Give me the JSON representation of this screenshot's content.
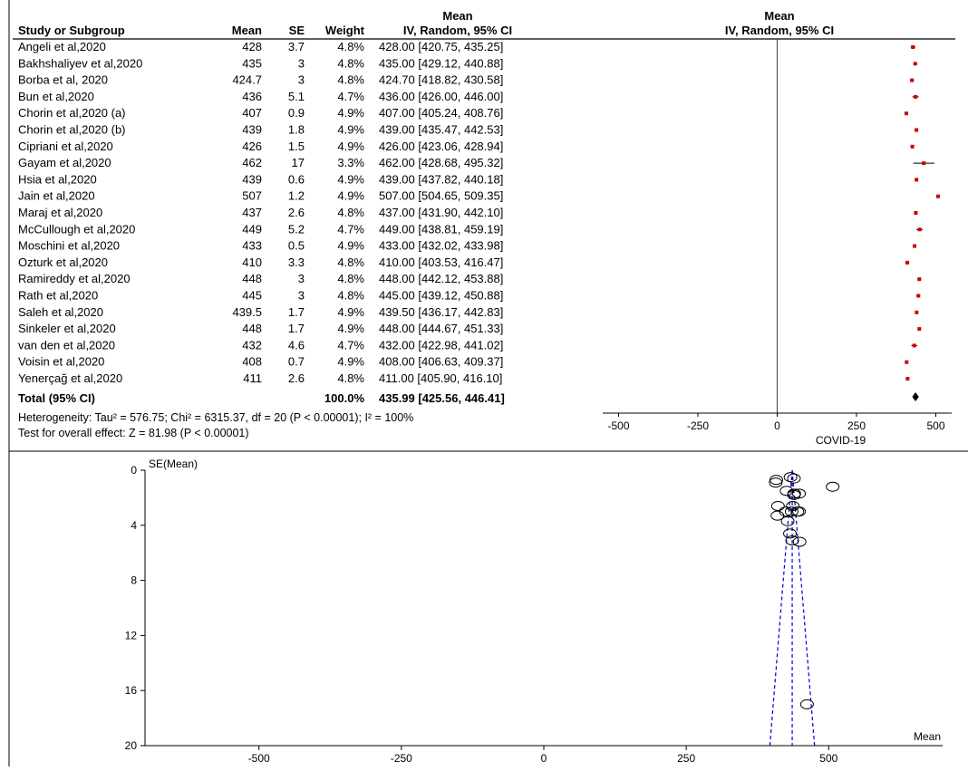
{
  "forest": {
    "headers": {
      "study": "Study or Subgroup",
      "mean": "Mean",
      "se": "SE",
      "weight": "Weight",
      "ci_top": "Mean",
      "ci_bottom": "IV, Random, 95% CI",
      "plot_top": "Mean",
      "plot_bottom": "IV, Random, 95% CI"
    },
    "rows": [
      {
        "study": "Angeli et al,2020",
        "mean": "428",
        "se": "3.7",
        "weight": "4.8%",
        "ci": "428.00 [420.75, 435.25]"
      },
      {
        "study": "Bakhshaliyev et al,2020",
        "mean": "435",
        "se": "3",
        "weight": "4.8%",
        "ci": "435.00 [429.12, 440.88]"
      },
      {
        "study": "Borba et al, 2020",
        "mean": "424.7",
        "se": "3",
        "weight": "4.8%",
        "ci": "424.70 [418.82, 430.58]"
      },
      {
        "study": "Bun et al,2020",
        "mean": "436",
        "se": "5.1",
        "weight": "4.7%",
        "ci": "436.00 [426.00, 446.00]"
      },
      {
        "study": "Chorin et al,2020 (a)",
        "mean": "407",
        "se": "0.9",
        "weight": "4.9%",
        "ci": "407.00 [405.24, 408.76]"
      },
      {
        "study": "Chorin et al,2020 (b)",
        "mean": "439",
        "se": "1.8",
        "weight": "4.9%",
        "ci": "439.00 [435.47, 442.53]"
      },
      {
        "study": "Cipriani et al,2020",
        "mean": "426",
        "se": "1.5",
        "weight": "4.9%",
        "ci": "426.00 [423.06, 428.94]"
      },
      {
        "study": "Gayam et al,2020",
        "mean": "462",
        "se": "17",
        "weight": "3.3%",
        "ci": "462.00 [428.68, 495.32]"
      },
      {
        "study": "Hsia et al,2020",
        "mean": "439",
        "se": "0.6",
        "weight": "4.9%",
        "ci": "439.00 [437.82, 440.18]"
      },
      {
        "study": "Jain et al,2020",
        "mean": "507",
        "se": "1.2",
        "weight": "4.9%",
        "ci": "507.00 [504.65, 509.35]"
      },
      {
        "study": "Maraj et al,2020",
        "mean": "437",
        "se": "2.6",
        "weight": "4.8%",
        "ci": "437.00 [431.90, 442.10]"
      },
      {
        "study": "McCullough et al,2020",
        "mean": "449",
        "se": "5.2",
        "weight": "4.7%",
        "ci": "449.00 [438.81, 459.19]"
      },
      {
        "study": "Moschini et al,2020",
        "mean": "433",
        "se": "0.5",
        "weight": "4.9%",
        "ci": "433.00 [432.02, 433.98]"
      },
      {
        "study": "Ozturk et al,2020",
        "mean": "410",
        "se": "3.3",
        "weight": "4.8%",
        "ci": "410.00 [403.53, 416.47]"
      },
      {
        "study": "Ramireddy et al,2020",
        "mean": "448",
        "se": "3",
        "weight": "4.8%",
        "ci": "448.00 [442.12, 453.88]"
      },
      {
        "study": "Rath et al,2020",
        "mean": "445",
        "se": "3",
        "weight": "4.8%",
        "ci": "445.00 [439.12, 450.88]"
      },
      {
        "study": "Saleh et al,2020",
        "mean": "439.5",
        "se": "1.7",
        "weight": "4.9%",
        "ci": "439.50 [436.17, 442.83]"
      },
      {
        "study": "Sinkeler et al,2020",
        "mean": "448",
        "se": "1.7",
        "weight": "4.9%",
        "ci": "448.00 [444.67, 451.33]"
      },
      {
        "study": "van den et al,2020",
        "mean": "432",
        "se": "4.6",
        "weight": "4.7%",
        "ci": "432.00 [422.98, 441.02]"
      },
      {
        "study": "Voisin et al,2020",
        "mean": "408",
        "se": "0.7",
        "weight": "4.9%",
        "ci": "408.00 [406.63, 409.37]"
      },
      {
        "study": "Yenerçağ et al,2020",
        "mean": "411",
        "se": "2.6",
        "weight": "4.8%",
        "ci": "411.00 [405.90, 416.10]"
      }
    ],
    "total": {
      "label": "Total (95% CI)",
      "weight": "100.0%",
      "ci": "435.99 [425.56, 446.41]"
    },
    "heterogeneity": "Heterogeneity: Tau² = 576.75; Chi² = 6315.37, df = 20 (P < 0.00001); I² = 100%",
    "overall_effect": "Test for overall effect: Z = 81.98 (P < 0.00001)",
    "axis_ticks": [
      "-500",
      "-250",
      "0",
      "250",
      "500"
    ],
    "axis_label": "COVID-19"
  },
  "funnel": {
    "ylabel": "SE(Mean)",
    "xlabel": "Mean",
    "yticks": [
      "0",
      "4",
      "8",
      "12",
      "16",
      "20"
    ],
    "xticks": [
      "-500",
      "-250",
      "0",
      "250",
      "500"
    ]
  },
  "chart_data": [
    {
      "type": "forest",
      "xlim": [
        -550,
        550
      ],
      "x_ticks": [
        -500,
        -250,
        0,
        250,
        500
      ],
      "xlabel": "COVID-19",
      "studies": [
        {
          "name": "Angeli et al,2020",
          "mean": 428,
          "lo": 420.75,
          "hi": 435.25
        },
        {
          "name": "Bakhshaliyev et al,2020",
          "mean": 435,
          "lo": 429.12,
          "hi": 440.88
        },
        {
          "name": "Borba et al, 2020",
          "mean": 424.7,
          "lo": 418.82,
          "hi": 430.58
        },
        {
          "name": "Bun et al,2020",
          "mean": 436,
          "lo": 426.0,
          "hi": 446.0
        },
        {
          "name": "Chorin et al,2020 (a)",
          "mean": 407,
          "lo": 405.24,
          "hi": 408.76
        },
        {
          "name": "Chorin et al,2020 (b)",
          "mean": 439,
          "lo": 435.47,
          "hi": 442.53
        },
        {
          "name": "Cipriani et al,2020",
          "mean": 426,
          "lo": 423.06,
          "hi": 428.94
        },
        {
          "name": "Gayam et al,2020",
          "mean": 462,
          "lo": 428.68,
          "hi": 495.32
        },
        {
          "name": "Hsia et al,2020",
          "mean": 439,
          "lo": 437.82,
          "hi": 440.18
        },
        {
          "name": "Jain et al,2020",
          "mean": 507,
          "lo": 504.65,
          "hi": 509.35
        },
        {
          "name": "Maraj et al,2020",
          "mean": 437,
          "lo": 431.9,
          "hi": 442.1
        },
        {
          "name": "McCullough et al,2020",
          "mean": 449,
          "lo": 438.81,
          "hi": 459.19
        },
        {
          "name": "Moschini et al,2020",
          "mean": 433,
          "lo": 432.02,
          "hi": 433.98
        },
        {
          "name": "Ozturk et al,2020",
          "mean": 410,
          "lo": 403.53,
          "hi": 416.47
        },
        {
          "name": "Ramireddy et al,2020",
          "mean": 448,
          "lo": 442.12,
          "hi": 453.88
        },
        {
          "name": "Rath et al,2020",
          "mean": 445,
          "lo": 439.12,
          "hi": 450.88
        },
        {
          "name": "Saleh et al,2020",
          "mean": 439.5,
          "lo": 436.17,
          "hi": 442.83
        },
        {
          "name": "Sinkeler et al,2020",
          "mean": 448,
          "lo": 444.67,
          "hi": 451.33
        },
        {
          "name": "van den et al,2020",
          "mean": 432,
          "lo": 422.98,
          "hi": 441.02
        },
        {
          "name": "Voisin et al,2020",
          "mean": 408,
          "lo": 406.63,
          "hi": 409.37
        },
        {
          "name": "Yenerçağ et al,2020",
          "mean": 411,
          "lo": 405.9,
          "hi": 416.1
        }
      ],
      "pooled": {
        "mean": 435.99,
        "lo": 425.56,
        "hi": 446.41
      },
      "marker_color": "#cc0000"
    },
    {
      "type": "scatter",
      "xlabel": "Mean",
      "ylabel": "SE(Mean)",
      "xlim": [
        -700,
        700
      ],
      "ylim": [
        0,
        20
      ],
      "y_inverted": true,
      "x_ticks": [
        -500,
        -250,
        0,
        250,
        500
      ],
      "y_ticks": [
        0,
        4,
        8,
        12,
        16,
        20
      ],
      "points": [
        {
          "x": 428,
          "y": 3.7
        },
        {
          "x": 435,
          "y": 3
        },
        {
          "x": 424.7,
          "y": 3
        },
        {
          "x": 436,
          "y": 5.1
        },
        {
          "x": 407,
          "y": 0.9
        },
        {
          "x": 439,
          "y": 1.8
        },
        {
          "x": 426,
          "y": 1.5
        },
        {
          "x": 462,
          "y": 17
        },
        {
          "x": 439,
          "y": 0.6
        },
        {
          "x": 507,
          "y": 1.2
        },
        {
          "x": 437,
          "y": 2.6
        },
        {
          "x": 449,
          "y": 5.2
        },
        {
          "x": 433,
          "y": 0.5
        },
        {
          "x": 410,
          "y": 3.3
        },
        {
          "x": 448,
          "y": 3
        },
        {
          "x": 445,
          "y": 3
        },
        {
          "x": 439.5,
          "y": 1.7
        },
        {
          "x": 448,
          "y": 1.7
        },
        {
          "x": 432,
          "y": 4.6
        },
        {
          "x": 408,
          "y": 0.7
        },
        {
          "x": 411,
          "y": 2.6
        }
      ],
      "pooled_mean": 435.99,
      "funnel_color": "#0000cc"
    }
  ]
}
